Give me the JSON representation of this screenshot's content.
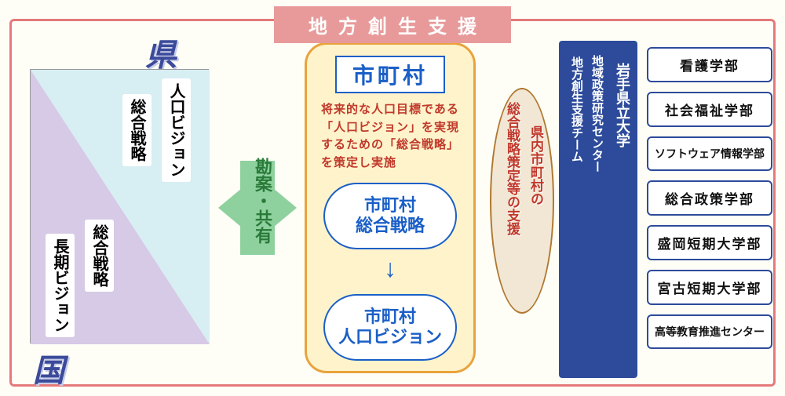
{
  "title": "地方創生支援",
  "ken_label": "県",
  "kuni_label": "国",
  "left": {
    "upper_right": "人口ビジョン",
    "upper_left": "総合戦略",
    "lower_right": "総合戦略",
    "lower_left": "長期ビジョン"
  },
  "green_arrow": "勘案・共有",
  "center": {
    "title": "市町村",
    "desc": "将来的な人口目標である「人口ビジョン」を実現するための「総合戦略」を策定し実施",
    "pill1": "市町村\n総合戦略",
    "pill2": "市町村\n人口ビジョン"
  },
  "oval": {
    "line1": "県内市町村の",
    "line2": "総合戦略策定等の支援"
  },
  "university": {
    "name": "岩手県立大学",
    "center_a": "地域政策研究センター",
    "center_b": "地方創生支援チーム"
  },
  "departments": [
    "看護学部",
    "社会福祉学部",
    "ソフトウェア情報学部",
    "総合政策学部",
    "盛岡短期大学部",
    "宮古短期大学部",
    "高等教育推進センター"
  ],
  "colors": {
    "frame": "#e57a7a",
    "title_bg": "#e89a9a",
    "blue": "#2d4b9a",
    "accent_blue": "#1a5fc7",
    "green": "#8fd19e",
    "center_bg": "#fef3cb",
    "center_border": "#e9a33c",
    "tri_upper": "#d7eef3",
    "tri_lower": "#d6cae6",
    "oval_bg": "#f2e7d4",
    "red_text": "#c0392b"
  }
}
